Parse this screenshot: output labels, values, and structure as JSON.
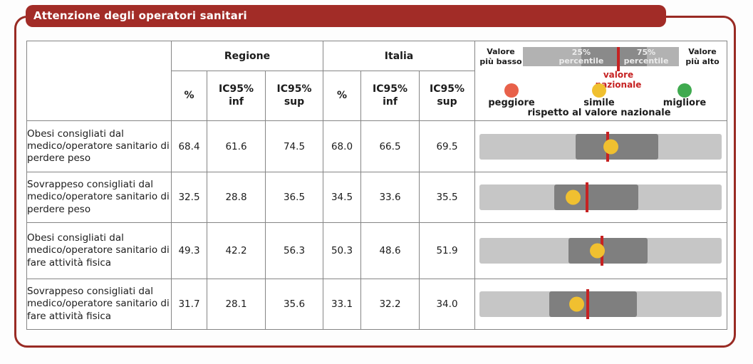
{
  "header": {
    "title": "Attenzione degli operatori sanitari"
  },
  "colors": {
    "brand_red": "#a22c27",
    "frame_red": "#992b24",
    "national_red": "#c62222",
    "band_light": "#c6c6c6",
    "band_dark": "#7f7f7f",
    "legend_light": "#b2b2b2",
    "legend_dark": "#8a8a8a",
    "peggiore": "#e8614a",
    "simile": "#f0c030",
    "migliore": "#3faa4f"
  },
  "table": {
    "groups": {
      "regione": "Regione",
      "italia": "Italia"
    },
    "subheaders": {
      "pct": "%",
      "inf": "IC95%\ninf",
      "sup": "IC95%\nsup"
    },
    "rows": [
      {
        "label": "Obesi consigliati dal medico/operatore sanitario di perdere peso",
        "regione": {
          "pct": "68.4",
          "inf": "61.6",
          "sup": "74.5"
        },
        "italia": {
          "pct": "68.0",
          "inf": "66.5",
          "sup": "69.5"
        },
        "marker": "simile",
        "band": {
          "q25": 39.7,
          "q75": 73.8,
          "national": 52.9,
          "value": 54.1
        }
      },
      {
        "label": "Sovrappeso consigliati dal medico/operatore sanitario di perdere peso",
        "regione": {
          "pct": "32.5",
          "inf": "28.8",
          "sup": "36.5"
        },
        "italia": {
          "pct": "34.5",
          "inf": "33.6",
          "sup": "35.5"
        },
        "marker": "simile",
        "band": {
          "q25": 30.9,
          "q75": 65.6,
          "national": 44.4,
          "value": 38.5
        }
      },
      {
        "label": "Obesi consigliati dal medico/operatore sanitario di fare attività fisica",
        "regione": {
          "pct": "49.3",
          "inf": "42.2",
          "sup": "56.3"
        },
        "italia": {
          "pct": "50.3",
          "inf": "48.6",
          "sup": "51.9"
        },
        "marker": "simile",
        "band": {
          "q25": 36.8,
          "q75": 69.4,
          "national": 50.6,
          "value": 48.5
        }
      },
      {
        "label": "Sovrappeso consigliati dal medico/operatore sanitario di fare attività fisica",
        "regione": {
          "pct": "31.7",
          "inf": "28.1",
          "sup": "35.6"
        },
        "italia": {
          "pct": "33.1",
          "inf": "32.2",
          "sup": "34.0"
        },
        "marker": "simile",
        "band": {
          "q25": 28.8,
          "q75": 65.0,
          "national": 44.7,
          "value": 40.0
        }
      }
    ]
  },
  "legend": {
    "lowest": "Valore\npiù basso",
    "highest": "Valore\npiù alto",
    "p25": "25%\npercentile",
    "p75": "75%\npercentile",
    "national": "valore\nnazionale",
    "worse": "peggiore",
    "similar": "simile",
    "better": "migliore",
    "relative_note": "rispetto al valore nazionale"
  },
  "chart_data": {
    "type": "table",
    "title": "Attenzione degli operatori sanitari",
    "column_groups": [
      "Regione",
      "Italia"
    ],
    "columns": [
      "%",
      "IC95% inf",
      "IC95% sup"
    ],
    "rows": [
      {
        "label": "Obesi consigliati dal medico/operatore sanitario di perdere peso",
        "regione": {
          "pct": 68.4,
          "ic95_inf": 61.6,
          "ic95_sup": 74.5
        },
        "italia": {
          "pct": 68.0,
          "ic95_inf": 66.5,
          "ic95_sup": 69.5
        },
        "confronto_nazionale": "simile"
      },
      {
        "label": "Sovrappeso consigliati dal medico/operatore sanitario di perdere peso",
        "regione": {
          "pct": 32.5,
          "ic95_inf": 28.8,
          "ic95_sup": 36.5
        },
        "italia": {
          "pct": 34.5,
          "ic95_inf": 33.6,
          "ic95_sup": 35.5
        },
        "confronto_nazionale": "simile"
      },
      {
        "label": "Obesi consigliati dal medico/operatore sanitario di fare attività fisica",
        "regione": {
          "pct": 49.3,
          "ic95_inf": 42.2,
          "ic95_sup": 56.3
        },
        "italia": {
          "pct": 50.3,
          "ic95_inf": 48.6,
          "ic95_sup": 51.9
        },
        "confronto_nazionale": "simile"
      },
      {
        "label": "Sovrappeso consigliati dal medico/operatore sanitario di fare attività fisica",
        "regione": {
          "pct": 31.7,
          "ic95_inf": 28.1,
          "ic95_sup": 35.6
        },
        "italia": {
          "pct": 33.1,
          "ic95_inf": 32.2,
          "ic95_sup": 34.0
        },
        "confronto_nazionale": "simile"
      }
    ],
    "legend_meaning": {
      "gray_band": "25%-75% percentile",
      "red_line": "valore nazionale",
      "peggiore": "rosso",
      "simile": "giallo",
      "migliore": "verde"
    }
  }
}
